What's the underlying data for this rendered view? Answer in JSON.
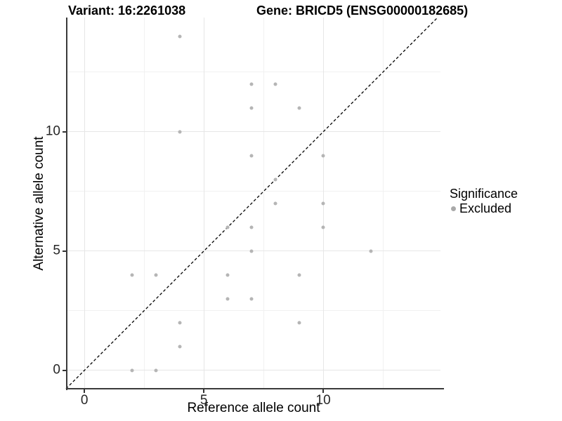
{
  "chart_data": {
    "type": "scatter",
    "title_left": "Variant: 16:2261038",
    "title_right": "Gene: BRICD5 (ENSG00000182685)",
    "xlabel": "Reference allele count",
    "ylabel": "Alternative allele count",
    "xlim": [
      -0.74,
      14.91
    ],
    "ylim": [
      -0.77,
      14.79
    ],
    "x_major_ticks": [
      0,
      5,
      10
    ],
    "y_major_ticks": [
      0,
      5,
      10
    ],
    "x_minor_gridlines": [
      2.5,
      7.5,
      12.5
    ],
    "y_minor_gridlines": [
      2.5,
      7.5,
      12.5
    ],
    "grid": "on",
    "identity_line": {
      "style": "dashed",
      "color": "#000000",
      "from": -0.77,
      "to": 14.79
    },
    "series": [
      {
        "name": "Excluded",
        "color": "#b5b5b5",
        "points": [
          [
            2,
            0
          ],
          [
            3,
            0
          ],
          [
            4,
            1
          ],
          [
            4,
            2
          ],
          [
            9,
            2
          ],
          [
            6,
            3
          ],
          [
            7,
            3
          ],
          [
            2,
            4
          ],
          [
            3,
            4
          ],
          [
            6,
            4
          ],
          [
            9,
            4
          ],
          [
            7,
            5
          ],
          [
            12,
            5
          ],
          [
            6,
            6
          ],
          [
            7,
            6
          ],
          [
            10,
            6
          ],
          [
            8,
            7
          ],
          [
            10,
            7
          ],
          [
            8,
            8
          ],
          [
            7,
            9
          ],
          [
            10,
            9
          ],
          [
            4,
            10
          ],
          [
            7,
            11
          ],
          [
            9,
            11
          ],
          [
            7,
            12
          ],
          [
            8,
            12
          ],
          [
            4,
            14
          ]
        ]
      }
    ],
    "legend": {
      "title": "Significance",
      "position": "right",
      "items": [
        {
          "label": "Excluded",
          "color": "#a9a9a9"
        }
      ]
    },
    "colors": {
      "grid_major": "#e6e6e6",
      "grid_minor": "#f1f1f1",
      "axis_line": "#3a3a3a",
      "tick_label": "#262626"
    }
  }
}
